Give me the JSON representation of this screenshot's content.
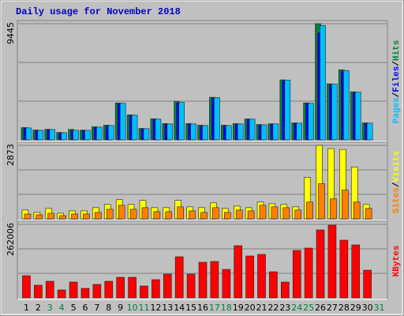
{
  "chart_data": [
    {
      "type": "bar",
      "title": "Daily usage for November 2018",
      "categories": [
        "1",
        "2",
        "3",
        "4",
        "5",
        "6",
        "7",
        "8",
        "9",
        "10",
        "11",
        "12",
        "13",
        "14",
        "15",
        "16",
        "17",
        "18",
        "19",
        "20",
        "21",
        "22",
        "23",
        "24",
        "25",
        "26",
        "27",
        "28",
        "29",
        "30",
        "31"
      ],
      "x_tick_colors": [
        "#000000",
        "#000000",
        "#008040",
        "#008040",
        "#000000",
        "#000000",
        "#000000",
        "#000000",
        "#000000",
        "#008040",
        "#008040",
        "#000000",
        "#000000",
        "#000000",
        "#000000",
        "#000000",
        "#008040",
        "#008040",
        "#000000",
        "#000000",
        "#000000",
        "#000000",
        "#000000",
        "#008040",
        "#008040",
        "#000000",
        "#000000",
        "#000000",
        "#000000",
        "#000000",
        "#008040"
      ],
      "legend_separator": "/",
      "series": [
        {
          "name": "Hits",
          "color": "#008040",
          "values": [
            1000,
            800,
            860,
            600,
            850,
            790,
            1060,
            1190,
            3000,
            2030,
            930,
            1710,
            1320,
            3110,
            1320,
            1190,
            3460,
            1190,
            1320,
            1700,
            1250,
            1310,
            4880,
            1380,
            3010,
            9445,
            4560,
            5700,
            3910,
            1380,
            null
          ]
        },
        {
          "name": "Files",
          "color": "#0000ff",
          "values": [
            960,
            760,
            830,
            570,
            760,
            760,
            1010,
            1140,
            2940,
            1980,
            890,
            1650,
            1270,
            3000,
            1270,
            1140,
            3400,
            1140,
            1270,
            1650,
            1200,
            1270,
            4800,
            1330,
            2940,
            8700,
            4480,
            5590,
            3840,
            1330,
            null
          ]
        },
        {
          "name": "Pages",
          "color": "#00c0ff",
          "values": [
            970,
            776,
            841,
            582,
            776,
            776,
            1035,
            1165,
            2976,
            2006,
            906,
            1682,
            1294,
            3041,
            1294,
            1165,
            3429,
            1165,
            1294,
            1682,
            1229,
            1294,
            4852,
            1359,
            2976,
            9300,
            4529,
            5629,
            3882,
            1359,
            null
          ]
        }
      ],
      "ylim": [
        0,
        9445
      ],
      "yticks": [
        9445
      ]
    },
    {
      "type": "bar",
      "series": [
        {
          "name": "Visits",
          "color": "#ffff00",
          "values": [
            343,
            250,
            406,
            218,
            312,
            312,
            437,
            562,
            749,
            562,
            718,
            437,
            437,
            718,
            468,
            437,
            624,
            406,
            499,
            437,
            655,
            593,
            562,
            468,
            1622,
            2873,
            2746,
            2714,
            2028,
            562,
            null
          ]
        },
        {
          "name": "Sites",
          "color": "#ff8000",
          "values": [
            187,
            156,
            218,
            125,
            187,
            187,
            250,
            374,
            530,
            374,
            437,
            281,
            281,
            468,
            312,
            250,
            437,
            250,
            343,
            312,
            530,
            468,
            437,
            343,
            655,
            1373,
            780,
            1123,
            655,
            406,
            null
          ]
        }
      ],
      "ylim": [
        0,
        2873
      ],
      "yticks": [
        2873
      ]
    },
    {
      "type": "bar",
      "series": [
        {
          "name": "KBytes",
          "color": "#ff0000",
          "values": [
            78876,
            45072,
            59157,
            28170,
            56340,
            33804,
            47889,
            59157,
            73242,
            73242,
            42255,
            64791,
            84510,
            146484,
            84510,
            126765,
            129582,
            101412,
            185922,
            149301,
            154935,
            92961,
            56340,
            169020,
            177471,
            242262,
            259164,
            205641,
            188739,
            98595,
            null
          ]
        }
      ],
      "ylim": [
        0,
        262006
      ],
      "yticks": [
        262006
      ]
    }
  ]
}
